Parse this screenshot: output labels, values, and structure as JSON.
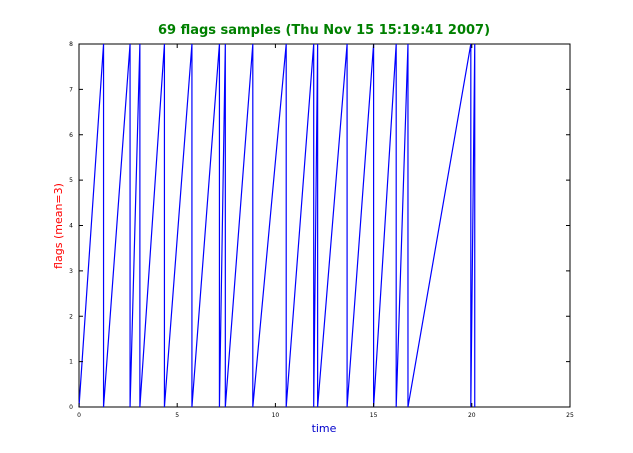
{
  "chart_data": {
    "type": "line",
    "title": "69 flags samples (Thu Nov 15 15:19:41 2007)",
    "xlabel": "time",
    "ylabel": "flags (mean=3)",
    "xlim": [
      0,
      25
    ],
    "ylim": [
      0,
      8
    ],
    "xticks": [
      "0",
      "5",
      "10",
      "15",
      "20",
      "25"
    ],
    "yticks": [
      "0",
      "1",
      "2",
      "3",
      "4",
      "5",
      "6",
      "7",
      "8"
    ],
    "grid": false,
    "legend": "none",
    "colors": {
      "title": "#008000",
      "xlabel": "#0000cc",
      "ylabel": "#ff0000",
      "series": "#0000ff"
    },
    "series": [
      {
        "x": [
          0.0,
          1.25,
          1.25,
          2.6,
          2.6,
          3.1,
          3.1,
          4.35,
          4.35,
          5.75,
          5.75,
          7.15,
          7.15,
          7.45,
          7.45,
          8.85,
          8.85,
          10.55,
          10.55,
          11.95,
          11.95,
          12.15,
          12.15,
          13.65,
          13.65,
          15.0,
          15.0,
          16.15,
          16.15,
          16.75,
          16.75,
          19.95,
          19.95,
          20.15,
          20.15
        ],
        "y": [
          0,
          8,
          0,
          8,
          0,
          8,
          0,
          8,
          0,
          8,
          0,
          8,
          0,
          8,
          0,
          8,
          0,
          8,
          0,
          8,
          0,
          8,
          0,
          8,
          0,
          8,
          0,
          8,
          0,
          8,
          0,
          8,
          0,
          8,
          0
        ]
      }
    ]
  }
}
